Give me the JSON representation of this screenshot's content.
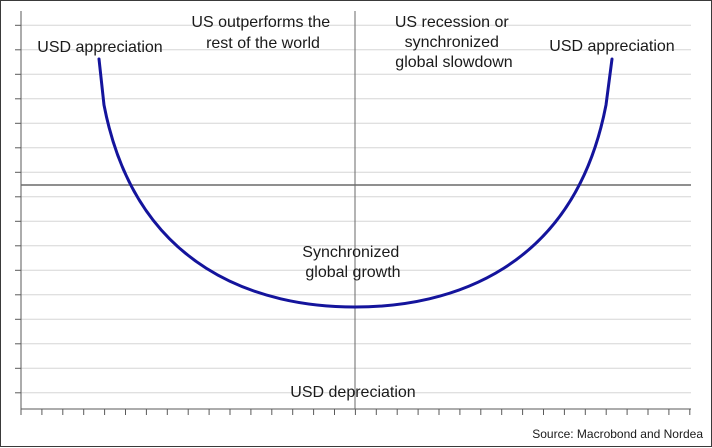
{
  "diagram": {
    "labels": {
      "left_top": "USD appreciation",
      "right_top": "USD appreciation",
      "quadrant_upper_left": [
        "US outperforms the",
        "rest of the world"
      ],
      "quadrant_upper_right": [
        "US recession or",
        "synchronized",
        "global slowdown"
      ],
      "center": [
        "Synchronized",
        "global growth"
      ],
      "bottom": "USD depreciation"
    },
    "source": "Source: Macrobond and Nordea",
    "curve_color": "#14149c",
    "grid_color": "#d6d6d6",
    "axis_color": "#5a5a5a"
  }
}
